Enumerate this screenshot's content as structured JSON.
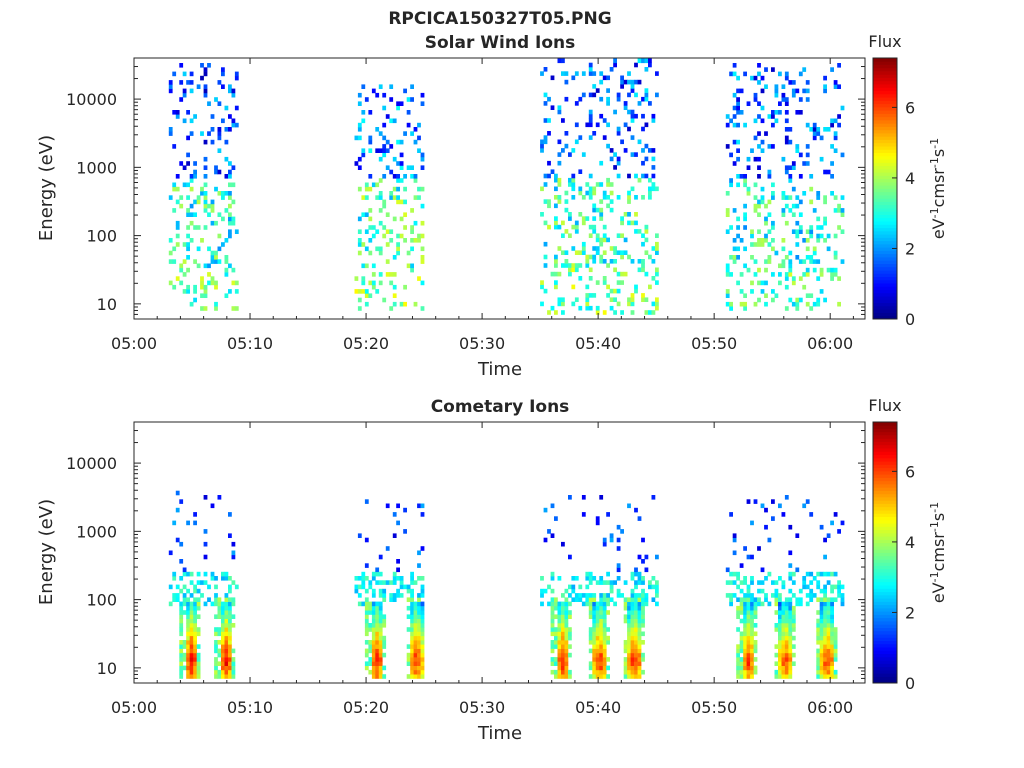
{
  "figure": {
    "title": "RPCICA150327T05.PNG"
  },
  "chart_data": [
    {
      "type": "heatmap",
      "title": "Solar Wind Ions",
      "xlabel": "Time",
      "ylabel": "Energy (eV)",
      "xticks": [
        "05:00",
        "05:10",
        "05:20",
        "05:30",
        "05:40",
        "05:50",
        "06:00"
      ],
      "xlim": [
        "05:00",
        "06:03"
      ],
      "yscale": "log",
      "yticks": [
        "10",
        "100",
        "1000",
        "10000"
      ],
      "ylim": [
        6,
        40000
      ],
      "colorbar": {
        "title": "Flux",
        "label": "eV-1cm-2sr-1s-1",
        "ticks": [
          "0",
          "2",
          "4",
          "6"
        ],
        "range": [
          0,
          7.4
        ],
        "colormap": "jet"
      },
      "bursts": [
        {
          "start": "05:03",
          "end": "05:09",
          "emin": 8,
          "emax": 30000,
          "low_flux": 3.1,
          "high_flux": 1.5
        },
        {
          "start": "05:19",
          "end": "05:25",
          "emin": 8,
          "emax": 15000,
          "low_flux": 3.3,
          "high_flux": 1.8
        },
        {
          "start": "05:35",
          "end": "05:45",
          "emin": 7,
          "emax": 35000,
          "low_flux": 3.2,
          "high_flux": 1.6
        },
        {
          "start": "05:51",
          "end": "06:01",
          "emin": 8,
          "emax": 30000,
          "low_flux": 3.0,
          "high_flux": 1.6
        }
      ]
    },
    {
      "type": "heatmap",
      "title": "Cometary Ions",
      "xlabel": "Time",
      "ylabel": "Energy (eV)",
      "xticks": [
        "05:00",
        "05:10",
        "05:20",
        "05:30",
        "05:40",
        "05:50",
        "06:00"
      ],
      "xlim": [
        "05:00",
        "06:03"
      ],
      "yscale": "log",
      "yticks": [
        "10",
        "100",
        "1000",
        "10000"
      ],
      "ylim": [
        6,
        40000
      ],
      "colorbar": {
        "title": "Flux",
        "label": "eV-1cm-2sr-1s-1",
        "ticks": [
          "0",
          "2",
          "4",
          "6"
        ],
        "range": [
          0,
          7.4
        ],
        "colormap": "jet"
      },
      "bursts": [
        {
          "start": "05:03",
          "end": "05:09",
          "emin": 7,
          "emax": 4000,
          "peaks": [
            "05:04.8",
            "05:07.8"
          ],
          "peak_flux": 6.5,
          "peak_energy": 12
        },
        {
          "start": "05:19",
          "end": "05:25",
          "emin": 7,
          "emax": 3000,
          "peaks": [
            "05:20.8",
            "05:24.2"
          ],
          "peak_flux": 6.3,
          "peak_energy": 12
        },
        {
          "start": "05:35",
          "end": "05:45",
          "emin": 7,
          "emax": 3000,
          "peaks": [
            "05:36.8",
            "05:40",
            "05:43"
          ],
          "peak_flux": 6.4,
          "peak_energy": 12
        },
        {
          "start": "05:51",
          "end": "06:01",
          "emin": 7,
          "emax": 3000,
          "peaks": [
            "05:52.8",
            "05:56",
            "05:59.6"
          ],
          "peak_flux": 6.2,
          "peak_energy": 12
        }
      ]
    }
  ]
}
